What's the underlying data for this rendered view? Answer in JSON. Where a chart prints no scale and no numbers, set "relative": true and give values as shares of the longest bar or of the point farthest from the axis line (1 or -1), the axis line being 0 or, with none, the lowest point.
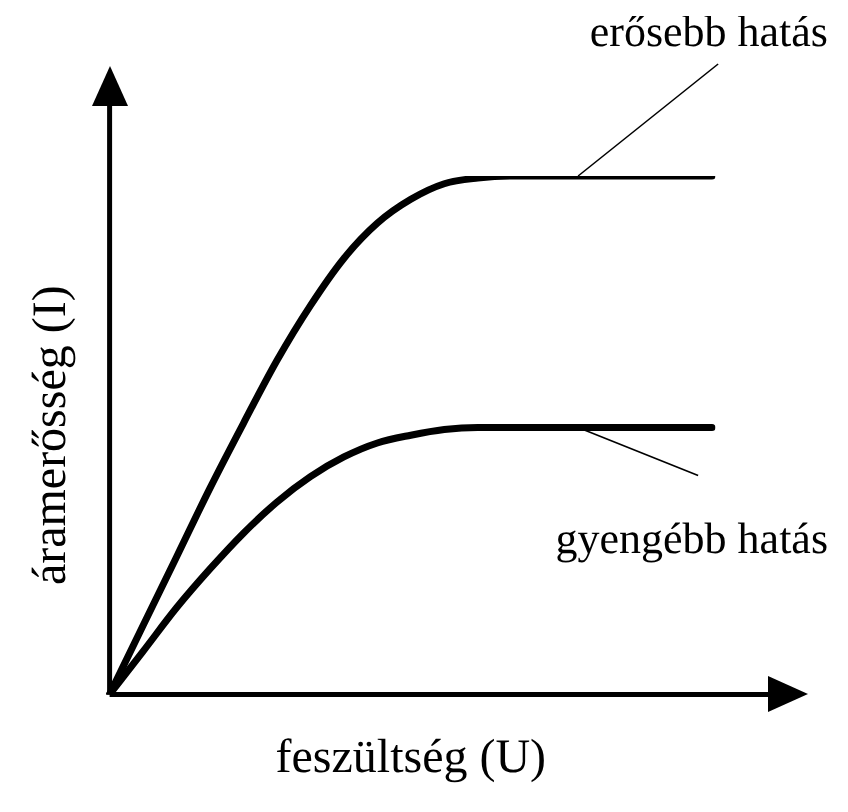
{
  "chart_data": {
    "type": "line",
    "relative": true,
    "xlabel": "feszültség (U)",
    "ylabel": "áramerősség (I)",
    "categories": [
      null,
      null,
      null,
      null,
      null,
      null,
      null,
      null,
      null,
      null,
      null,
      null,
      null,
      null,
      null,
      null,
      null,
      null,
      null
    ],
    "series": [
      {
        "color": "#000000",
        "values": [
          0,
          0.133,
          0.265,
          0.398,
          0.523,
          0.644,
          0.75,
          0.841,
          0.909,
          0.955,
          0.985,
          0.996,
          1,
          1,
          1,
          1,
          1,
          1,
          1
        ]
      },
      {
        "color": "#000000",
        "values": [
          0,
          0.083,
          0.167,
          0.242,
          0.311,
          0.371,
          0.42,
          0.458,
          0.485,
          0.5,
          0.511,
          0.515,
          0.515,
          0.515,
          0.515,
          0.515,
          0.515,
          0.515,
          0.515
        ]
      }
    ],
    "annotations": [
      "erősebb hatás",
      "gyengébb hatás"
    ],
    "grid": false,
    "legend": false,
    "marker": "none",
    "line_style": "solid"
  }
}
